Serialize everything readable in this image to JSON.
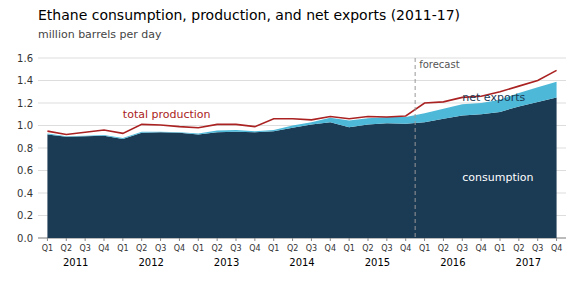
{
  "chart_data": {
    "type": "area",
    "title": "Ethane consumption, production, and net exports (2011-17)",
    "subtitle": "million barrels per day",
    "stacked": true,
    "grid": true,
    "categories": [
      "Q1",
      "Q2",
      "Q3",
      "Q4",
      "Q1",
      "Q2",
      "Q3",
      "Q4",
      "Q1",
      "Q2",
      "Q3",
      "Q4",
      "Q1",
      "Q2",
      "Q3",
      "Q4",
      "Q1",
      "Q2",
      "Q3",
      "Q4",
      "Q1",
      "Q2",
      "Q3",
      "Q4",
      "Q1",
      "Q2",
      "Q3",
      "Q4"
    ],
    "years": [
      "2011",
      "2012",
      "2013",
      "2014",
      "2015",
      "2016",
      "2017"
    ],
    "ylim": [
      0.0,
      1.6
    ],
    "yticks": [
      {
        "value": 0.0,
        "label": "0.0"
      },
      0.2,
      0.4,
      0.6,
      0.8,
      {
        "value": 1.0,
        "label": "1.0"
      },
      1.2,
      1.4,
      1.6
    ],
    "forecast": {
      "index": 20,
      "label": "forecast"
    },
    "series": [
      {
        "name": "consumption",
        "type": "area",
        "color": "#1b3a54",
        "values": [
          0.92,
          0.9,
          0.905,
          0.91,
          0.88,
          0.935,
          0.94,
          0.935,
          0.92,
          0.94,
          0.945,
          0.94,
          0.95,
          0.98,
          1.01,
          1.03,
          0.985,
          1.01,
          1.02,
          1.015,
          1.03,
          1.06,
          1.09,
          1.1,
          1.12,
          1.17,
          1.21,
          1.25
        ]
      },
      {
        "name": "net exports",
        "type": "area",
        "color": "#4db8d8",
        "values": [
          0.01,
          0.005,
          0.005,
          0.005,
          0.01,
          0.01,
          0.005,
          0.005,
          0.01,
          0.015,
          0.015,
          0.01,
          0.01,
          0.02,
          0.02,
          0.04,
          0.06,
          0.055,
          0.055,
          0.06,
          0.08,
          0.09,
          0.1,
          0.1,
          0.11,
          0.12,
          0.13,
          0.14
        ]
      },
      {
        "name": "total production",
        "type": "line",
        "color": "#aa2222",
        "values": [
          0.95,
          0.92,
          0.94,
          0.96,
          0.93,
          1.01,
          1.005,
          0.99,
          0.98,
          1.01,
          1.01,
          0.99,
          1.06,
          1.06,
          1.05,
          1.08,
          1.06,
          1.08,
          1.075,
          1.085,
          1.2,
          1.21,
          1.25,
          1.26,
          1.3,
          1.35,
          1.4,
          1.49
        ]
      }
    ]
  }
}
